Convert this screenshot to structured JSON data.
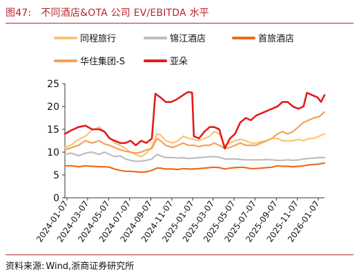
{
  "figure": {
    "number": "图47:",
    "title": "不同酒店&OTA 公司 EV/EBITDA 水平"
  },
  "source": {
    "label": "资料来源:",
    "text": "Wind,浙商证券研究所"
  },
  "chart_data": {
    "type": "line",
    "title": "",
    "xlabel": "",
    "ylabel": "",
    "ylim": [
      0,
      25
    ],
    "yticks": [
      0,
      5,
      10,
      15,
      20,
      25
    ],
    "xlim": [
      "2024-01-01",
      "2026-01-25"
    ],
    "xtick_labels": [
      "2024-01-07",
      "2024-03-07",
      "2024-05-07",
      "2024-07-07",
      "2024-09-07",
      "2024-11-07",
      "2025-01-07",
      "2025-03-07",
      "2025-05-07",
      "2025-07-07",
      "2025-09-07",
      "2025-11-07",
      "2026-01-07"
    ],
    "grid": false,
    "legend_position": "top",
    "series": [
      {
        "name": "同程旅行",
        "color": "#f8c575",
        "points": [
          [
            "2024-01-01",
            11.0
          ],
          [
            "2024-01-20",
            11.6
          ],
          [
            "2024-02-10",
            12.8
          ],
          [
            "2024-03-01",
            13.5
          ],
          [
            "2024-03-20",
            14.8
          ],
          [
            "2024-04-10",
            15.5
          ],
          [
            "2024-04-25",
            14.5
          ],
          [
            "2024-05-10",
            13.2
          ],
          [
            "2024-05-25",
            12.0
          ],
          [
            "2024-06-10",
            11.5
          ],
          [
            "2024-06-25",
            10.8
          ],
          [
            "2024-07-10",
            10.0
          ],
          [
            "2024-07-25",
            9.5
          ],
          [
            "2024-08-10",
            9.0
          ],
          [
            "2024-08-25",
            9.8
          ],
          [
            "2024-09-10",
            11.2
          ],
          [
            "2024-09-25",
            14.0
          ],
          [
            "2024-10-05",
            13.8
          ],
          [
            "2024-10-20",
            12.5
          ],
          [
            "2024-11-10",
            12.0
          ],
          [
            "2024-11-25",
            12.5
          ],
          [
            "2024-12-10",
            13.5
          ],
          [
            "2024-12-25",
            13.0
          ],
          [
            "2025-01-10",
            12.8
          ],
          [
            "2025-01-25",
            12.5
          ],
          [
            "2025-02-10",
            13.0
          ],
          [
            "2025-02-25",
            13.5
          ],
          [
            "2025-03-10",
            14.5
          ],
          [
            "2025-03-25",
            14.0
          ],
          [
            "2025-04-10",
            11.5
          ],
          [
            "2025-04-25",
            12.0
          ],
          [
            "2025-05-10",
            12.5
          ],
          [
            "2025-05-25",
            12.8
          ],
          [
            "2025-06-10",
            12.5
          ],
          [
            "2025-06-25",
            12.0
          ],
          [
            "2025-07-10",
            12.0
          ],
          [
            "2025-07-25",
            12.3
          ],
          [
            "2025-08-10",
            12.5
          ],
          [
            "2025-08-25",
            13.0
          ],
          [
            "2025-09-10",
            13.0
          ],
          [
            "2025-09-25",
            12.5
          ],
          [
            "2025-10-10",
            12.5
          ],
          [
            "2025-10-25",
            12.5
          ],
          [
            "2025-11-10",
            12.8
          ],
          [
            "2025-11-25",
            12.5
          ],
          [
            "2025-12-10",
            13.0
          ],
          [
            "2025-12-25",
            13.0
          ],
          [
            "2026-01-10",
            13.5
          ],
          [
            "2026-01-25",
            14.0
          ]
        ]
      },
      {
        "name": "锦江酒店",
        "color": "#bdbdbd",
        "points": [
          [
            "2024-01-01",
            9.5
          ],
          [
            "2024-01-20",
            9.8
          ],
          [
            "2024-02-10",
            9.2
          ],
          [
            "2024-03-01",
            9.8
          ],
          [
            "2024-03-20",
            10.0
          ],
          [
            "2024-04-10",
            9.5
          ],
          [
            "2024-04-25",
            10.0
          ],
          [
            "2024-05-10",
            9.5
          ],
          [
            "2024-05-25",
            9.0
          ],
          [
            "2024-06-10",
            9.2
          ],
          [
            "2024-06-25",
            8.5
          ],
          [
            "2024-07-10",
            8.2
          ],
          [
            "2024-07-25",
            8.0
          ],
          [
            "2024-08-10",
            8.0
          ],
          [
            "2024-08-25",
            8.2
          ],
          [
            "2024-09-10",
            8.5
          ],
          [
            "2024-09-25",
            9.5
          ],
          [
            "2024-10-05",
            9.2
          ],
          [
            "2024-10-20",
            8.8
          ],
          [
            "2024-11-10",
            8.8
          ],
          [
            "2024-11-25",
            8.7
          ],
          [
            "2024-12-10",
            8.8
          ],
          [
            "2024-12-25",
            8.6
          ],
          [
            "2025-01-10",
            8.7
          ],
          [
            "2025-01-25",
            8.8
          ],
          [
            "2025-02-10",
            8.9
          ],
          [
            "2025-02-25",
            9.0
          ],
          [
            "2025-03-10",
            9.0
          ],
          [
            "2025-03-25",
            8.9
          ],
          [
            "2025-04-10",
            8.5
          ],
          [
            "2025-04-25",
            8.5
          ],
          [
            "2025-05-10",
            8.5
          ],
          [
            "2025-05-25",
            8.4
          ],
          [
            "2025-06-10",
            8.3
          ],
          [
            "2025-06-25",
            8.3
          ],
          [
            "2025-07-10",
            8.3
          ],
          [
            "2025-07-25",
            8.3
          ],
          [
            "2025-08-10",
            8.4
          ],
          [
            "2025-08-25",
            8.3
          ],
          [
            "2025-09-10",
            8.2
          ],
          [
            "2025-09-25",
            8.2
          ],
          [
            "2025-10-10",
            8.3
          ],
          [
            "2025-10-25",
            8.2
          ],
          [
            "2025-11-10",
            8.3
          ],
          [
            "2025-11-25",
            8.5
          ],
          [
            "2025-12-10",
            8.6
          ],
          [
            "2025-12-25",
            8.7
          ],
          [
            "2026-01-10",
            8.8
          ],
          [
            "2026-01-25",
            8.8
          ]
        ]
      },
      {
        "name": "首旅酒店",
        "color": "#ec6a1f",
        "points": [
          [
            "2024-01-01",
            7.0
          ],
          [
            "2024-01-20",
            7.0
          ],
          [
            "2024-02-10",
            6.8
          ],
          [
            "2024-03-01",
            7.0
          ],
          [
            "2024-03-20",
            6.9
          ],
          [
            "2024-04-10",
            6.8
          ],
          [
            "2024-04-25",
            6.8
          ],
          [
            "2024-05-10",
            6.7
          ],
          [
            "2024-05-25",
            6.3
          ],
          [
            "2024-06-10",
            6.0
          ],
          [
            "2024-06-25",
            5.8
          ],
          [
            "2024-07-10",
            5.8
          ],
          [
            "2024-07-25",
            5.7
          ],
          [
            "2024-08-10",
            5.6
          ],
          [
            "2024-08-25",
            5.7
          ],
          [
            "2024-09-10",
            6.0
          ],
          [
            "2024-09-25",
            6.5
          ],
          [
            "2024-10-05",
            6.5
          ],
          [
            "2024-10-20",
            6.3
          ],
          [
            "2024-11-10",
            6.3
          ],
          [
            "2024-11-25",
            6.2
          ],
          [
            "2024-12-10",
            6.4
          ],
          [
            "2024-12-25",
            6.3
          ],
          [
            "2025-01-10",
            6.3
          ],
          [
            "2025-01-25",
            6.4
          ],
          [
            "2025-02-10",
            6.5
          ],
          [
            "2025-02-25",
            6.6
          ],
          [
            "2025-03-10",
            6.7
          ],
          [
            "2025-03-25",
            6.6
          ],
          [
            "2025-04-10",
            6.3
          ],
          [
            "2025-04-25",
            6.5
          ],
          [
            "2025-05-10",
            6.6
          ],
          [
            "2025-05-25",
            6.7
          ],
          [
            "2025-06-10",
            6.6
          ],
          [
            "2025-06-25",
            6.4
          ],
          [
            "2025-07-10",
            6.4
          ],
          [
            "2025-07-25",
            6.5
          ],
          [
            "2025-08-10",
            6.6
          ],
          [
            "2025-08-25",
            6.7
          ],
          [
            "2025-09-10",
            7.0
          ],
          [
            "2025-09-25",
            6.9
          ],
          [
            "2025-10-10",
            6.9
          ],
          [
            "2025-10-25",
            6.8
          ],
          [
            "2025-11-10",
            6.9
          ],
          [
            "2025-11-25",
            7.0
          ],
          [
            "2025-12-10",
            7.2
          ],
          [
            "2025-12-25",
            7.3
          ],
          [
            "2026-01-10",
            7.4
          ],
          [
            "2026-01-25",
            7.6
          ]
        ]
      },
      {
        "name": "华住集团-S",
        "color": "#f5a055",
        "points": [
          [
            "2024-01-01",
            10.5
          ],
          [
            "2024-01-20",
            11.0
          ],
          [
            "2024-02-10",
            11.5
          ],
          [
            "2024-03-01",
            12.5
          ],
          [
            "2024-03-20",
            12.0
          ],
          [
            "2024-04-10",
            12.5
          ],
          [
            "2024-04-25",
            11.8
          ],
          [
            "2024-05-10",
            11.5
          ],
          [
            "2024-05-25",
            11.0
          ],
          [
            "2024-06-10",
            10.5
          ],
          [
            "2024-06-25",
            10.2
          ],
          [
            "2024-07-10",
            10.0
          ],
          [
            "2024-07-25",
            9.8
          ],
          [
            "2024-08-10",
            10.0
          ],
          [
            "2024-08-25",
            10.5
          ],
          [
            "2024-09-10",
            10.8
          ],
          [
            "2024-09-25",
            13.0
          ],
          [
            "2024-10-05",
            12.5
          ],
          [
            "2024-10-20",
            11.5
          ],
          [
            "2024-11-10",
            11.0
          ],
          [
            "2024-11-25",
            11.5
          ],
          [
            "2024-12-10",
            12.0
          ],
          [
            "2024-12-25",
            11.5
          ],
          [
            "2025-01-10",
            11.5
          ],
          [
            "2025-01-25",
            11.2
          ],
          [
            "2025-02-10",
            11.5
          ],
          [
            "2025-02-25",
            11.5
          ],
          [
            "2025-03-10",
            12.0
          ],
          [
            "2025-03-25",
            11.5
          ],
          [
            "2025-04-10",
            10.8
          ],
          [
            "2025-04-25",
            11.0
          ],
          [
            "2025-05-10",
            11.5
          ],
          [
            "2025-05-25",
            12.0
          ],
          [
            "2025-06-10",
            11.5
          ],
          [
            "2025-06-25",
            11.5
          ],
          [
            "2025-07-10",
            11.5
          ],
          [
            "2025-07-25",
            12.0
          ],
          [
            "2025-08-10",
            12.5
          ],
          [
            "2025-08-25",
            13.0
          ],
          [
            "2025-09-10",
            14.0
          ],
          [
            "2025-09-25",
            14.5
          ],
          [
            "2025-10-10",
            14.0
          ],
          [
            "2025-10-25",
            14.5
          ],
          [
            "2025-11-10",
            15.5
          ],
          [
            "2025-11-25",
            16.5
          ],
          [
            "2025-12-10",
            17.0
          ],
          [
            "2025-12-25",
            17.5
          ],
          [
            "2026-01-10",
            17.8
          ],
          [
            "2026-01-25",
            18.8
          ]
        ]
      },
      {
        "name": "亚朵",
        "color": "#e31b1b",
        "points": [
          [
            "2024-01-01",
            14.0
          ],
          [
            "2024-01-20",
            14.8
          ],
          [
            "2024-02-10",
            15.5
          ],
          [
            "2024-03-01",
            15.8
          ],
          [
            "2024-03-20",
            15.0
          ],
          [
            "2024-04-10",
            15.0
          ],
          [
            "2024-04-25",
            14.5
          ],
          [
            "2024-05-10",
            13.0
          ],
          [
            "2024-05-25",
            12.5
          ],
          [
            "2024-06-10",
            12.0
          ],
          [
            "2024-06-25",
            12.0
          ],
          [
            "2024-07-10",
            12.5
          ],
          [
            "2024-07-25",
            11.5
          ],
          [
            "2024-08-10",
            12.5
          ],
          [
            "2024-08-25",
            12.0
          ],
          [
            "2024-09-10",
            13.0
          ],
          [
            "2024-09-20",
            22.8
          ],
          [
            "2024-10-05",
            22.0
          ],
          [
            "2024-10-20",
            21.0
          ],
          [
            "2024-11-05",
            21.0
          ],
          [
            "2024-11-20",
            21.5
          ],
          [
            "2024-12-10",
            22.5
          ],
          [
            "2024-12-25",
            23.2
          ],
          [
            "2025-01-05",
            23.0
          ],
          [
            "2025-01-10",
            13.5
          ],
          [
            "2025-01-25",
            13.0
          ],
          [
            "2025-02-10",
            14.5
          ],
          [
            "2025-02-25",
            15.5
          ],
          [
            "2025-03-10",
            15.5
          ],
          [
            "2025-03-25",
            15.0
          ],
          [
            "2025-04-10",
            10.8
          ],
          [
            "2025-04-25",
            13.0
          ],
          [
            "2025-05-10",
            14.0
          ],
          [
            "2025-05-25",
            16.5
          ],
          [
            "2025-06-10",
            17.5
          ],
          [
            "2025-06-25",
            17.0
          ],
          [
            "2025-07-10",
            18.0
          ],
          [
            "2025-07-25",
            18.5
          ],
          [
            "2025-08-10",
            19.0
          ],
          [
            "2025-08-25",
            19.5
          ],
          [
            "2025-09-10",
            20.0
          ],
          [
            "2025-09-25",
            21.0
          ],
          [
            "2025-10-10",
            21.0
          ],
          [
            "2025-10-25",
            20.0
          ],
          [
            "2025-11-10",
            19.5
          ],
          [
            "2025-11-25",
            20.0
          ],
          [
            "2025-12-05",
            23.0
          ],
          [
            "2025-12-20",
            22.5
          ],
          [
            "2026-01-05",
            22.0
          ],
          [
            "2026-01-15",
            21.0
          ],
          [
            "2026-01-25",
            22.5
          ]
        ]
      }
    ]
  }
}
